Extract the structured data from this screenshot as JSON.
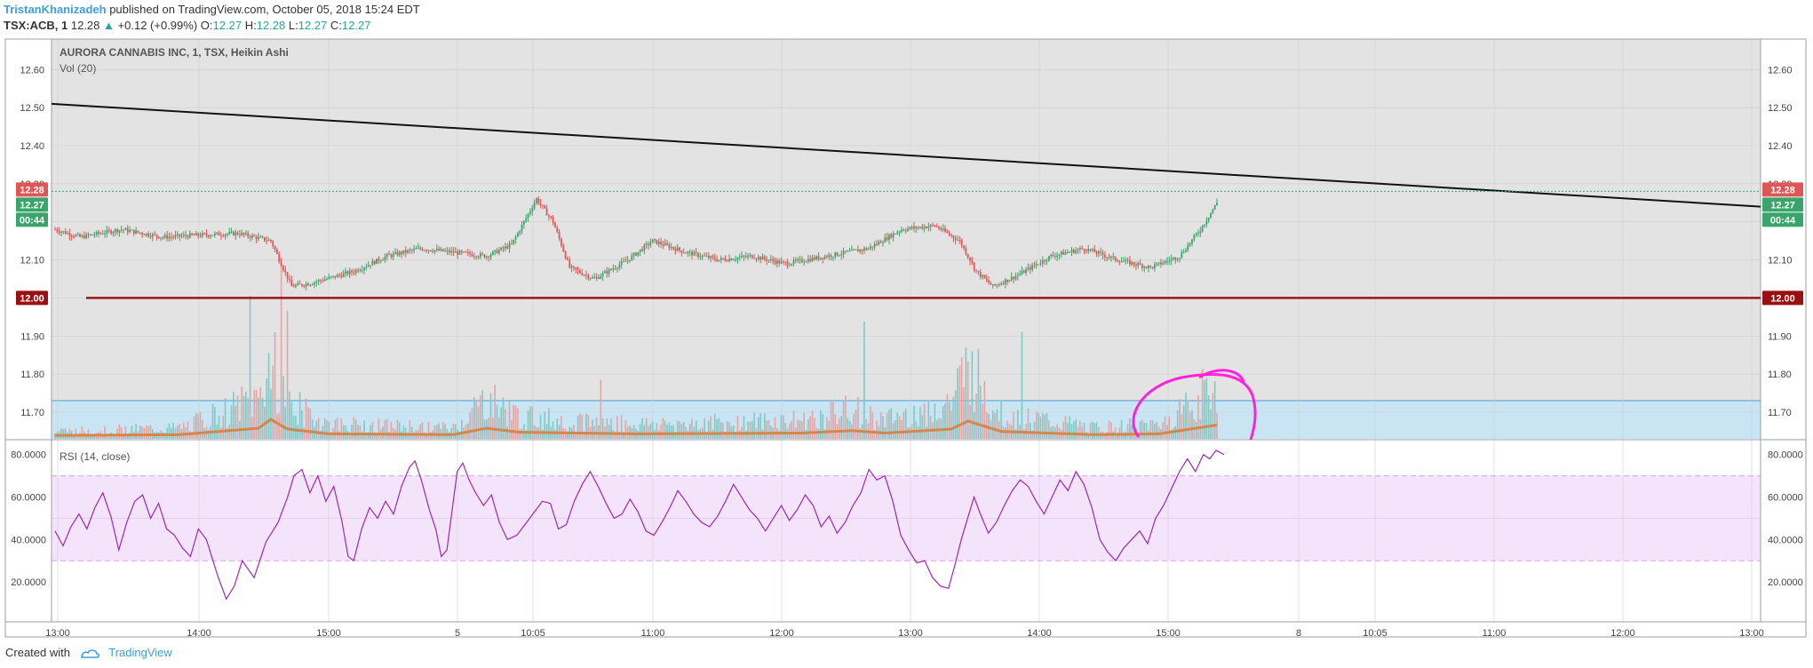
{
  "header": {
    "author": "TristanKhanizadeh",
    "published_text": "published on TradingView.com, October 05, 2018 15:24 EDT",
    "symbol": "TSX:ACB, 1",
    "last_price": "12.28",
    "change_arrow": "▲",
    "change": "+0.12 (+0.99%)",
    "o_label": "O:",
    "o_value": "12.27",
    "h_label": "H:",
    "h_value": "12.28",
    "l_label": "L:",
    "l_value": "12.27",
    "c_label": "C:",
    "c_value": "12.27"
  },
  "footer": {
    "created_with": "Created with",
    "brand": "TradingView"
  },
  "chart_data": [
    {
      "type": "candlestick",
      "title": "AURORA CANNABIS INC, 1, TSX, Heikin Ashi",
      "study_label": "Vol (20)",
      "y_ticks": [
        "12.60",
        "12.50",
        "12.40",
        "12.30",
        "12.20",
        "12.10",
        "12.00",
        "11.90",
        "11.80",
        "11.70"
      ],
      "ylim": [
        11.63,
        12.68
      ],
      "x_ticks": [
        "13:00",
        "14:00",
        "15:00",
        "5",
        "10:05",
        "11:00",
        "12:00",
        "13:00",
        "14:00",
        "15:00",
        "8",
        "10:05",
        "11:00",
        "12:00",
        "13:00"
      ],
      "price_tags": {
        "high_tag": "12.28",
        "last_tag": "12.27",
        "countdown": "00:44",
        "support_tag": "12.00"
      },
      "trendline": {
        "start_value": 12.51,
        "end_value": 12.24
      },
      "support_line": 12.0,
      "last_price": 12.27,
      "volume_zone_top": 11.72,
      "path": [
        [
          0,
          12.18
        ],
        [
          30,
          12.16
        ],
        [
          80,
          12.18
        ],
        [
          130,
          12.16
        ],
        [
          220,
          12.17
        ],
        [
          260,
          12.15
        ],
        [
          285,
          12.03
        ],
        [
          310,
          12.04
        ],
        [
          360,
          12.07
        ],
        [
          400,
          12.11
        ],
        [
          440,
          12.13
        ],
        [
          480,
          12.12
        ],
        [
          520,
          12.11
        ],
        [
          550,
          12.14
        ],
        [
          580,
          12.26
        ],
        [
          600,
          12.2
        ],
        [
          620,
          12.08
        ],
        [
          650,
          12.05
        ],
        [
          690,
          12.1
        ],
        [
          720,
          12.15
        ],
        [
          760,
          12.12
        ],
        [
          800,
          12.1
        ],
        [
          840,
          12.11
        ],
        [
          880,
          12.09
        ],
        [
          930,
          12.11
        ],
        [
          980,
          12.13
        ],
        [
          1020,
          12.18
        ],
        [
          1060,
          12.19
        ],
        [
          1090,
          12.15
        ],
        [
          1110,
          12.07
        ],
        [
          1130,
          12.03
        ],
        [
          1160,
          12.06
        ],
        [
          1200,
          12.11
        ],
        [
          1240,
          12.13
        ],
        [
          1280,
          12.1
        ],
        [
          1320,
          12.08
        ],
        [
          1355,
          12.11
        ],
        [
          1380,
          12.18
        ],
        [
          1400,
          12.25
        ]
      ],
      "volume_path": [
        [
          0,
          0.2
        ],
        [
          150,
          0.3
        ],
        [
          245,
          1.1
        ],
        [
          260,
          2.2
        ],
        [
          280,
          1.0
        ],
        [
          330,
          0.4
        ],
        [
          480,
          0.3
        ],
        [
          520,
          1.1
        ],
        [
          535,
          0.9
        ],
        [
          560,
          0.6
        ],
        [
          700,
          0.4
        ],
        [
          900,
          0.5
        ],
        [
          960,
          0.8
        ],
        [
          1000,
          0.5
        ],
        [
          1080,
          1.0
        ],
        [
          1100,
          2.0
        ],
        [
          1140,
          0.7
        ],
        [
          1250,
          0.3
        ],
        [
          1330,
          0.4
        ],
        [
          1400,
          1.5
        ]
      ]
    },
    {
      "type": "line",
      "title": "RSI (14, close)",
      "y_ticks": [
        "80.0000",
        "60.0000",
        "40.0000",
        "20.0000"
      ],
      "ylim": [
        5,
        87
      ],
      "band": [
        30,
        70
      ],
      "mid": 50,
      "series": [
        {
          "values": [
            [
              0,
              44
            ],
            [
              10,
              37
            ],
            [
              20,
              46
            ],
            [
              30,
              52
            ],
            [
              40,
              45
            ],
            [
              50,
              55
            ],
            [
              60,
              62
            ],
            [
              70,
              51
            ],
            [
              80,
              35
            ],
            [
              90,
              48
            ],
            [
              100,
              58
            ],
            [
              110,
              61
            ],
            [
              120,
              50
            ],
            [
              130,
              57
            ],
            [
              140,
              45
            ],
            [
              150,
              42
            ],
            [
              160,
              36
            ],
            [
              170,
              32
            ],
            [
              180,
              45
            ],
            [
              190,
              40
            ],
            [
              205,
              22
            ],
            [
              215,
              12
            ],
            [
              225,
              18
            ],
            [
              235,
              30
            ],
            [
              250,
              22
            ],
            [
              265,
              39
            ],
            [
              280,
              48
            ],
            [
              292,
              60
            ],
            [
              300,
              70
            ],
            [
              310,
              73
            ],
            [
              320,
              62
            ],
            [
              330,
              70
            ],
            [
              340,
              58
            ],
            [
              350,
              65
            ],
            [
              360,
              49
            ],
            [
              368,
              32
            ],
            [
              375,
              30
            ],
            [
              385,
              45
            ],
            [
              395,
              55
            ],
            [
              405,
              50
            ],
            [
              415,
              58
            ],
            [
              425,
              52
            ],
            [
              435,
              65
            ],
            [
              445,
              74
            ],
            [
              452,
              77
            ],
            [
              460,
              68
            ],
            [
              470,
              54
            ],
            [
              478,
              45
            ],
            [
              485,
              32
            ],
            [
              492,
              35
            ],
            [
              498,
              52
            ],
            [
              505,
              72
            ],
            [
              512,
              76
            ],
            [
              520,
              68
            ],
            [
              528,
              62
            ],
            [
              538,
              56
            ],
            [
              548,
              61
            ],
            [
              558,
              48
            ],
            [
              568,
              40
            ],
            [
              580,
              42
            ],
            [
              590,
              47
            ],
            [
              600,
              52
            ],
            [
              612,
              58
            ],
            [
              622,
              57
            ],
            [
              632,
              45
            ],
            [
              642,
              47
            ],
            [
              652,
              58
            ],
            [
              662,
              66
            ],
            [
              672,
              72
            ],
            [
              682,
              65
            ],
            [
              692,
              57
            ],
            [
              702,
              50
            ],
            [
              712,
              52
            ],
            [
              722,
              59
            ],
            [
              732,
              53
            ],
            [
              742,
              44
            ],
            [
              752,
              42
            ],
            [
              762,
              48
            ],
            [
              772,
              55
            ],
            [
              782,
              63
            ],
            [
              792,
              58
            ],
            [
              802,
              52
            ],
            [
              812,
              48
            ],
            [
              822,
              46
            ],
            [
              832,
              51
            ],
            [
              842,
              58
            ],
            [
              852,
              66
            ],
            [
              862,
              60
            ],
            [
              872,
              54
            ],
            [
              882,
              50
            ],
            [
              892,
              44
            ],
            [
              902,
              50
            ],
            [
              912,
              56
            ],
            [
              922,
              49
            ],
            [
              932,
              54
            ],
            [
              942,
              61
            ],
            [
              952,
              56
            ],
            [
              962,
              46
            ],
            [
              972,
              51
            ],
            [
              982,
              43
            ],
            [
              992,
              48
            ],
            [
              1002,
              56
            ],
            [
              1012,
              62
            ],
            [
              1022,
              73
            ],
            [
              1032,
              68
            ],
            [
              1042,
              70
            ],
            [
              1052,
              58
            ],
            [
              1062,
              42
            ],
            [
              1072,
              35
            ],
            [
              1082,
              29
            ],
            [
              1092,
              30
            ],
            [
              1102,
              22
            ],
            [
              1112,
              18
            ],
            [
              1122,
              17
            ],
            [
              1130,
              28
            ],
            [
              1138,
              40
            ],
            [
              1146,
              50
            ],
            [
              1154,
              60
            ],
            [
              1162,
              52
            ],
            [
              1172,
              43
            ],
            [
              1182,
              48
            ],
            [
              1192,
              56
            ],
            [
              1202,
              63
            ],
            [
              1212,
              68
            ],
            [
              1222,
              65
            ],
            [
              1232,
              58
            ],
            [
              1242,
              52
            ],
            [
              1252,
              60
            ],
            [
              1262,
              68
            ],
            [
              1272,
              63
            ],
            [
              1282,
              72
            ],
            [
              1292,
              66
            ],
            [
              1302,
              55
            ],
            [
              1312,
              40
            ],
            [
              1322,
              34
            ],
            [
              1332,
              30
            ],
            [
              1342,
              36
            ],
            [
              1352,
              40
            ],
            [
              1362,
              44
            ],
            [
              1372,
              38
            ],
            [
              1382,
              50
            ],
            [
              1392,
              56
            ],
            [
              1402,
              64
            ],
            [
              1412,
              72
            ],
            [
              1422,
              78
            ],
            [
              1432,
              72
            ],
            [
              1442,
              80
            ],
            [
              1450,
              78
            ],
            [
              1458,
              82
            ],
            [
              1468,
              80
            ]
          ]
        }
      ]
    }
  ]
}
